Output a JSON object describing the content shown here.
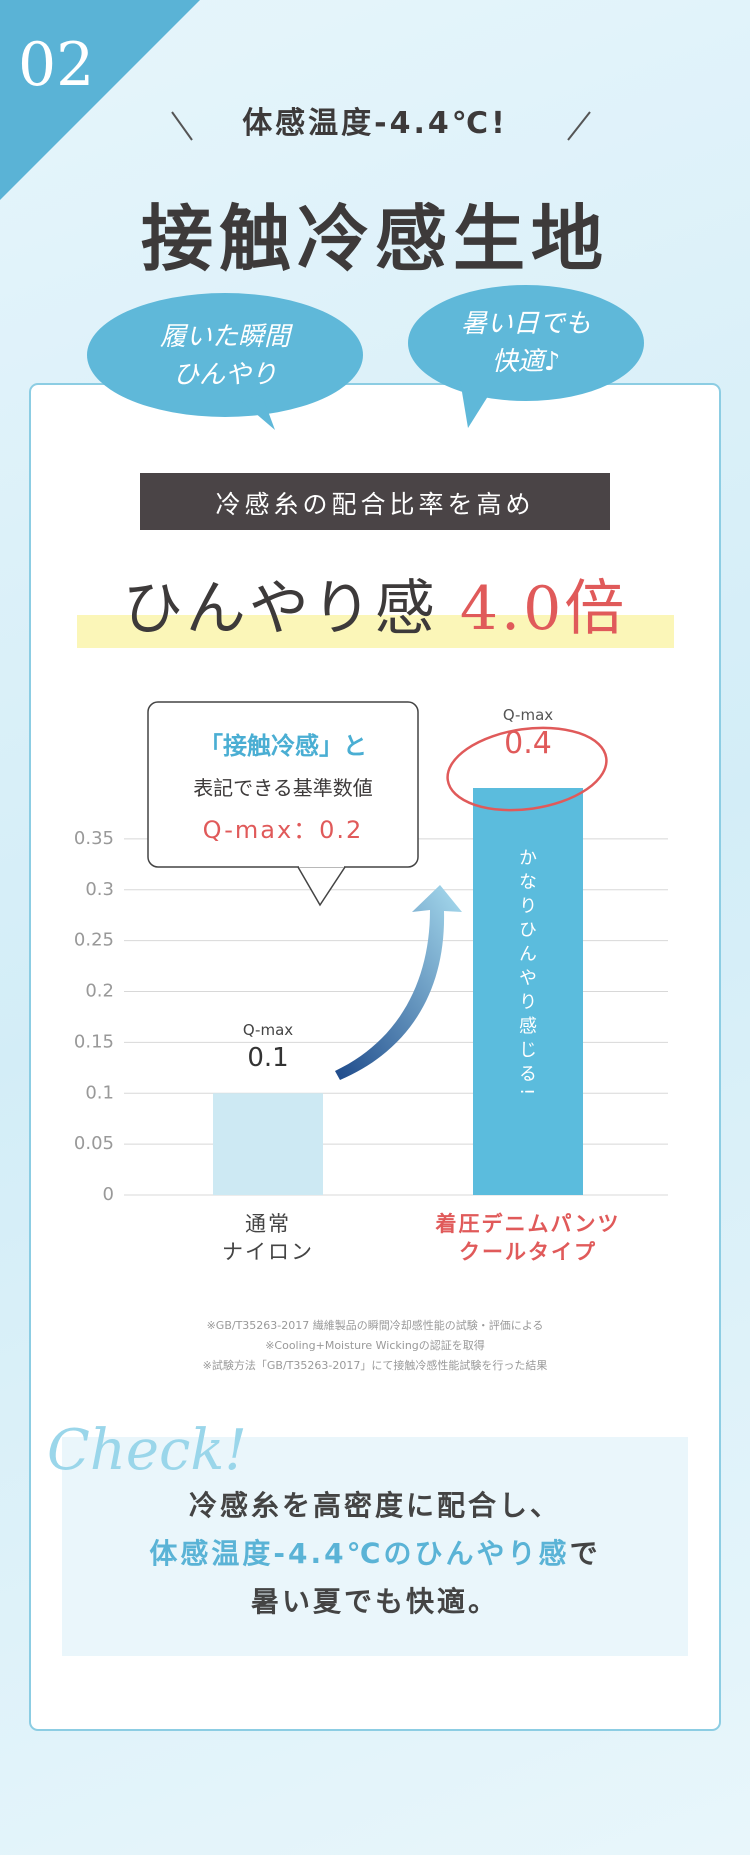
{
  "badge": "02",
  "header": {
    "catch": "体感温度-4.4℃!",
    "title": "接触冷感生地"
  },
  "bubbles": [
    "履いた瞬間\nひんやり",
    "暑い日でも\n快適♪"
  ],
  "banner": "冷感糸の配合比率を高め",
  "headline": {
    "text": "ひんやり感",
    "emphasis": "4.0倍"
  },
  "chart_data": {
    "type": "bar",
    "categories": [
      "通常\nナイロン",
      "着圧デニムパンツ\nクールタイプ"
    ],
    "values": [
      0.1,
      0.4
    ],
    "value_caption": "Q-max",
    "colors": [
      "#cde9f3",
      "#5bbcdd"
    ],
    "label_colors": [
      "#444444",
      "#e05a5a"
    ],
    "ylim": [
      0,
      0.4
    ],
    "yticks": [
      0,
      0.05,
      0.1,
      0.15,
      0.2,
      0.25,
      0.3,
      0.35
    ],
    "grid": true,
    "callout": [
      "「接触冷感」と",
      "表記できる基準数値",
      "Q-max：0.2"
    ],
    "bar_note": "かなりひんやり感じる!"
  },
  "notes": [
    "※GB/T35263-2017 繊維製品の瞬間冷却感性能の試験・評価による",
    "※Cooling+Moisture Wickingの認証を取得",
    "※試験方法「GB/T35263-2017」にて接触冷感性能試験を行った結果"
  ],
  "check": {
    "label": "Check!",
    "line1": "冷感糸を高密度に配合し、",
    "line2_emphasis": "体感温度-4.4℃のひんやり感",
    "line2_rest": "で",
    "line3": "暑い夏でも快適。"
  }
}
